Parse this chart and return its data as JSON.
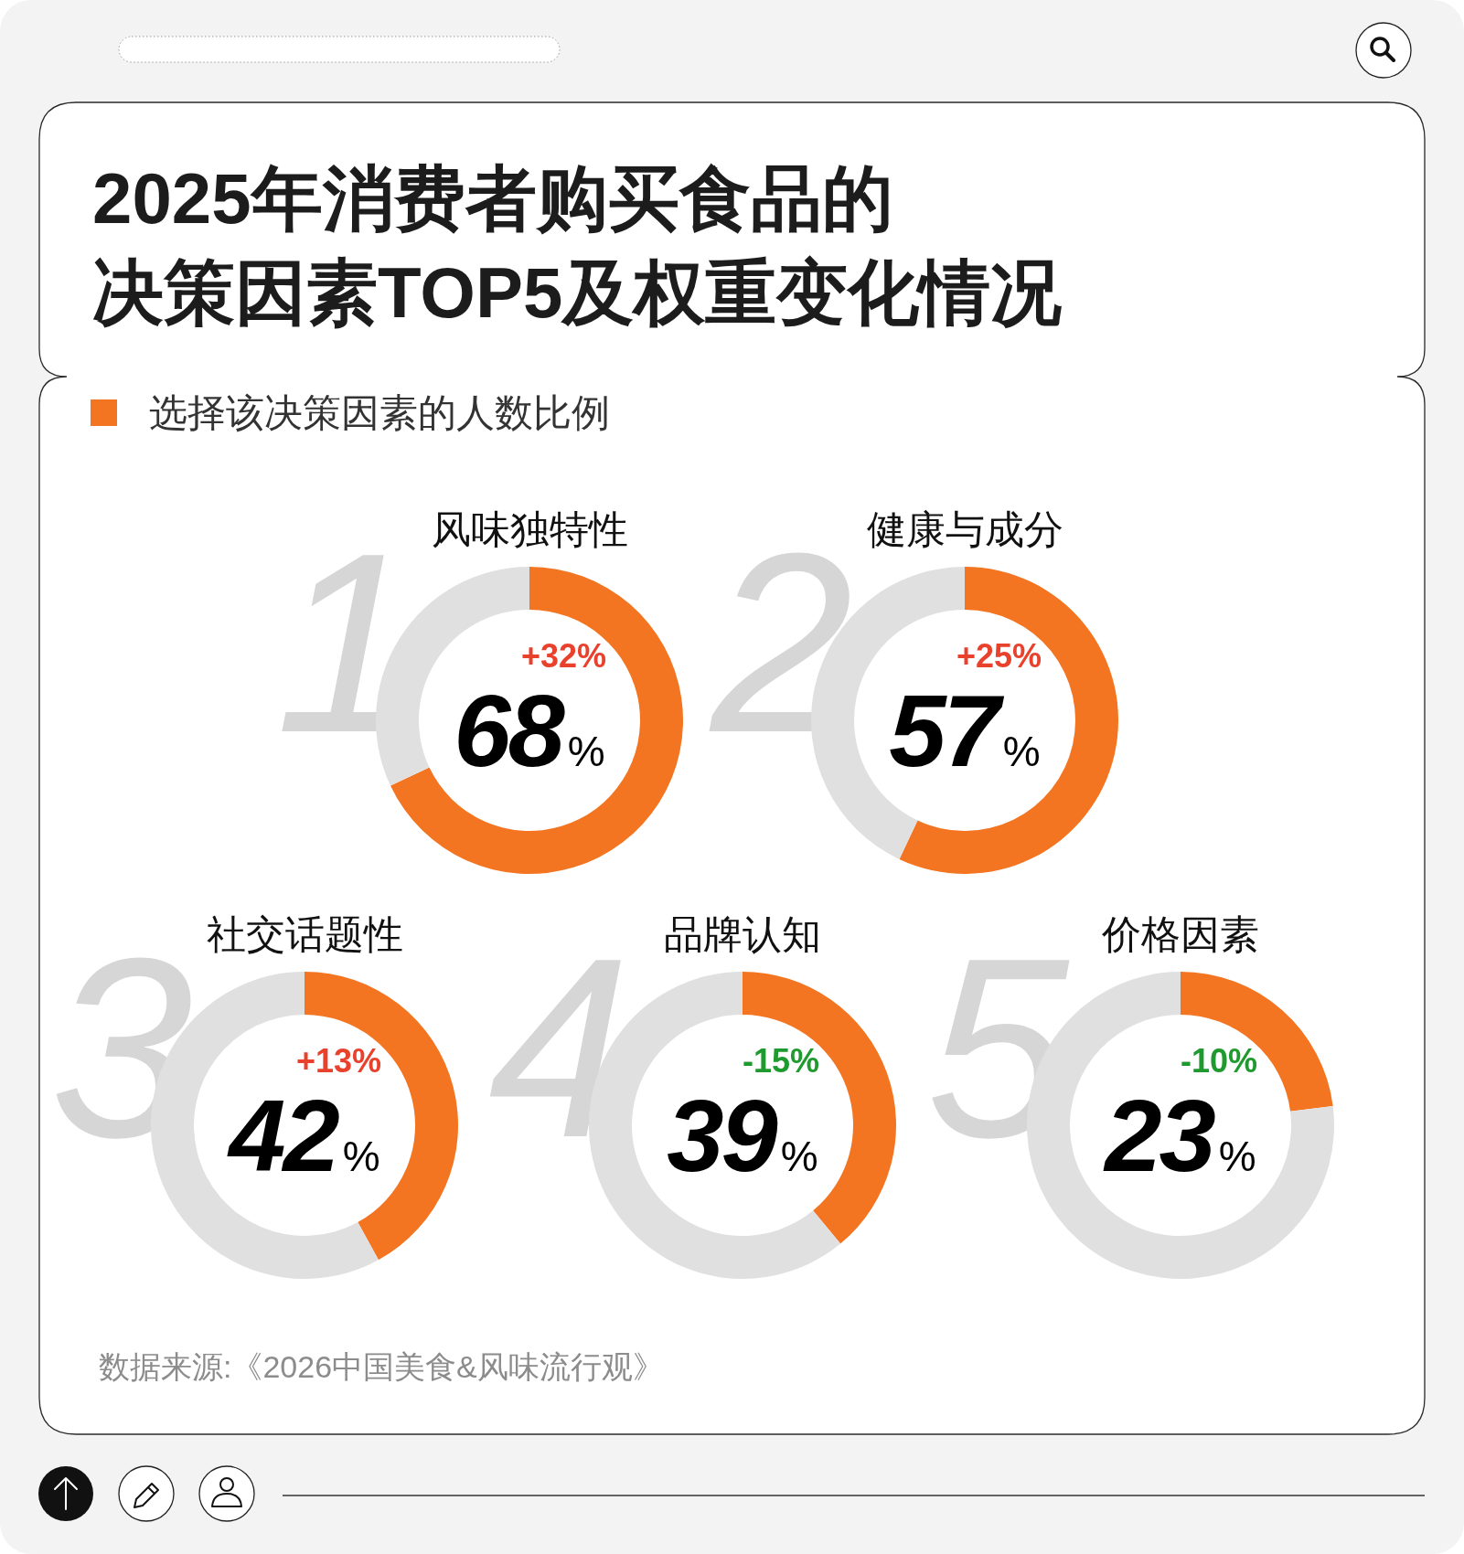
{
  "chart_data": [
    {
      "type": "other",
      "title": "2025年消费者购买食品的决策因素TOP5及权重变化情况"
    },
    {
      "type": "donut",
      "title": "风味独特性",
      "categories": [
        "选择该决策因素的人数比例",
        null
      ],
      "values": [
        68,
        32
      ],
      "colors": [
        "#f47521",
        "#e0e0e0"
      ],
      "annotations": [
        "1",
        "+32%",
        "68%"
      ],
      "legend": "top left"
    },
    {
      "type": "donut",
      "title": "健康与成分",
      "categories": [
        null,
        null
      ],
      "values": [
        57,
        43
      ],
      "colors": [
        "#f47521",
        "#e0e0e0"
      ],
      "annotations": [
        "2",
        "+25%",
        "57%"
      ]
    },
    {
      "type": "donut",
      "title": "社交话题性",
      "categories": [
        null,
        null
      ],
      "values": [
        42,
        58
      ],
      "colors": [
        "#f47521",
        "#e0e0e0"
      ],
      "annotations": [
        "3",
        "+13%",
        "42%"
      ]
    },
    {
      "type": "donut",
      "title": "品牌认知",
      "categories": [
        null,
        null
      ],
      "values": [
        39,
        61
      ],
      "colors": [
        "#f47521",
        "#e0e0e0"
      ],
      "annotations": [
        "4",
        "-15%",
        "39%"
      ]
    },
    {
      "type": "donut",
      "title": "价格因素",
      "categories": [
        null,
        null
      ],
      "values": [
        23,
        77
      ],
      "colors": [
        "#f47521",
        "#e0e0e0"
      ],
      "annotations": [
        "5",
        "-10%",
        "23%",
        "数据来源:《2026中国美食&风味流行观》"
      ]
    }
  ]
}
